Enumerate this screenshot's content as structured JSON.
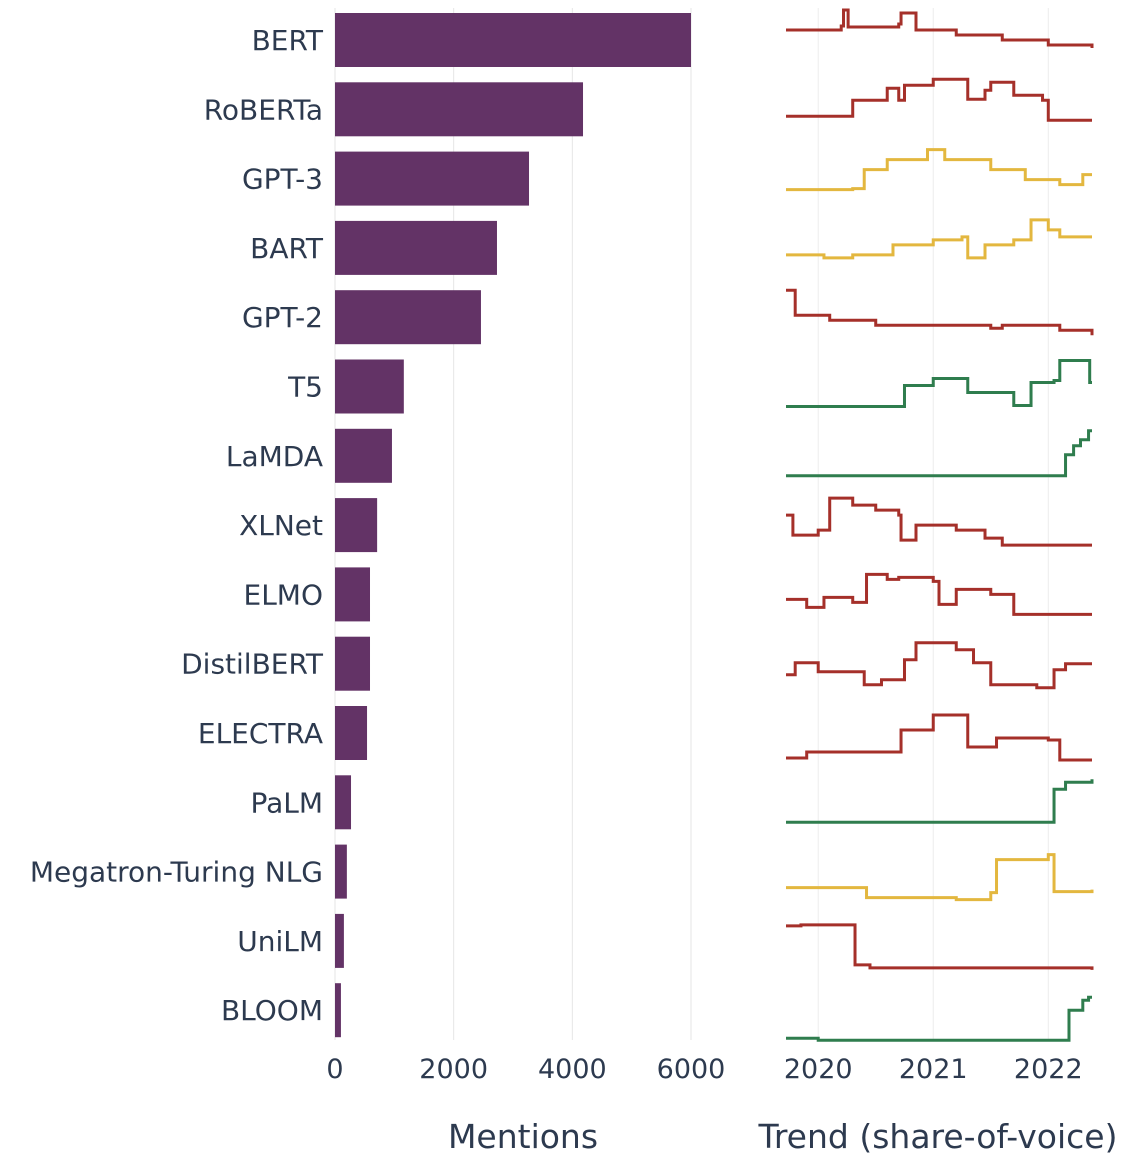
{
  "chart_data": [
    {
      "type": "bar",
      "orientation": "horizontal",
      "categories": [
        "BERT",
        "RoBERTa",
        "GPT-3",
        "BART",
        "GPT-2",
        "T5",
        "LaMDA",
        "XLNet",
        "ELMO",
        "DistilBERT",
        "ELECTRA",
        "PaLM",
        "Megatron-Turing NLG",
        "UniLM",
        "BLOOM"
      ],
      "values": [
        6000,
        4180,
        3270,
        2730,
        2460,
        1160,
        960,
        710,
        590,
        590,
        540,
        270,
        200,
        150,
        100
      ],
      "xlabel": "Mentions",
      "xlim": [
        0,
        6000
      ],
      "xticks": [
        "0",
        "2000",
        "4000",
        "6000"
      ],
      "grid": true,
      "bar_color": "#633366"
    },
    {
      "type": "line",
      "style": "step",
      "xlabel": "Trend (share-of-voice)",
      "xlim": [
        2019.72,
        2022.38
      ],
      "xticks": [
        "2020",
        "2021",
        "2022"
      ],
      "colors": {
        "down": "#a5302a",
        "flat": "#e3b73f",
        "up": "#2f7d4e"
      },
      "series": [
        {
          "category": "BERT",
          "trend": "down",
          "points": [
            [
              2019.72,
              0.6
            ],
            [
              2020.2,
              0.68
            ],
            [
              2020.22,
              1.0
            ],
            [
              2020.26,
              0.66
            ],
            [
              2020.7,
              0.72
            ],
            [
              2020.72,
              0.94
            ],
            [
              2020.85,
              0.6
            ],
            [
              2021.2,
              0.5
            ],
            [
              2021.6,
              0.4
            ],
            [
              2022.0,
              0.3
            ],
            [
              2022.38,
              0.24
            ]
          ]
        },
        {
          "category": "RoBERTa",
          "trend": "down",
          "points": [
            [
              2019.72,
              0.26
            ],
            [
              2020.3,
              0.58
            ],
            [
              2020.6,
              0.82
            ],
            [
              2020.7,
              0.58
            ],
            [
              2020.75,
              0.88
            ],
            [
              2021.0,
              1.0
            ],
            [
              2021.3,
              0.6
            ],
            [
              2021.45,
              0.78
            ],
            [
              2021.5,
              0.94
            ],
            [
              2021.7,
              0.68
            ],
            [
              2021.95,
              0.58
            ],
            [
              2022.0,
              0.18
            ],
            [
              2022.38,
              0.18
            ]
          ]
        },
        {
          "category": "GPT-3",
          "trend": "flat",
          "points": [
            [
              2019.72,
              0.18
            ],
            [
              2020.3,
              0.2
            ],
            [
              2020.4,
              0.58
            ],
            [
              2020.6,
              0.78
            ],
            [
              2020.95,
              0.98
            ],
            [
              2021.1,
              0.78
            ],
            [
              2021.5,
              0.58
            ],
            [
              2021.8,
              0.38
            ],
            [
              2022.1,
              0.28
            ],
            [
              2022.3,
              0.48
            ],
            [
              2022.38,
              0.48
            ]
          ]
        },
        {
          "category": "BART",
          "trend": "flat",
          "points": [
            [
              2019.72,
              0.26
            ],
            [
              2020.05,
              0.2
            ],
            [
              2020.3,
              0.26
            ],
            [
              2020.65,
              0.46
            ],
            [
              2021.0,
              0.56
            ],
            [
              2021.25,
              0.62
            ],
            [
              2021.3,
              0.2
            ],
            [
              2021.45,
              0.46
            ],
            [
              2021.7,
              0.56
            ],
            [
              2021.85,
              0.96
            ],
            [
              2022.0,
              0.76
            ],
            [
              2022.1,
              0.62
            ],
            [
              2022.38,
              0.62
            ]
          ]
        },
        {
          "category": "GPT-2",
          "trend": "down",
          "points": [
            [
              2019.72,
              0.94
            ],
            [
              2019.8,
              0.44
            ],
            [
              2020.1,
              0.34
            ],
            [
              2020.5,
              0.24
            ],
            [
              2021.5,
              0.18
            ],
            [
              2021.6,
              0.24
            ],
            [
              2022.1,
              0.14
            ],
            [
              2022.38,
              0.04
            ]
          ]
        },
        {
          "category": "T5",
          "trend": "up",
          "points": [
            [
              2019.72,
              0.0
            ],
            [
              2020.75,
              0.42
            ],
            [
              2021.0,
              0.56
            ],
            [
              2021.3,
              0.28
            ],
            [
              2021.7,
              0.02
            ],
            [
              2021.85,
              0.48
            ],
            [
              2022.05,
              0.52
            ],
            [
              2022.1,
              0.92
            ],
            [
              2022.36,
              0.48
            ],
            [
              2022.38,
              0.48
            ]
          ]
        },
        {
          "category": "LaMDA",
          "trend": "up",
          "points": [
            [
              2019.72,
              0.0
            ],
            [
              2022.15,
              0.42
            ],
            [
              2022.22,
              0.6
            ],
            [
              2022.28,
              0.72
            ],
            [
              2022.35,
              0.9
            ],
            [
              2022.38,
              0.9
            ]
          ]
        },
        {
          "category": "XLNet",
          "trend": "down",
          "points": [
            [
              2019.72,
              0.6
            ],
            [
              2019.78,
              0.2
            ],
            [
              2020.0,
              0.3
            ],
            [
              2020.1,
              0.94
            ],
            [
              2020.3,
              0.8
            ],
            [
              2020.5,
              0.7
            ],
            [
              2020.7,
              0.6
            ],
            [
              2020.72,
              0.1
            ],
            [
              2020.85,
              0.4
            ],
            [
              2021.2,
              0.3
            ],
            [
              2021.45,
              0.14
            ],
            [
              2021.6,
              0.0
            ],
            [
              2022.38,
              0.0
            ]
          ]
        },
        {
          "category": "ELMO",
          "trend": "down",
          "points": [
            [
              2019.72,
              0.3
            ],
            [
              2019.9,
              0.14
            ],
            [
              2020.05,
              0.34
            ],
            [
              2020.3,
              0.24
            ],
            [
              2020.42,
              0.8
            ],
            [
              2020.6,
              0.7
            ],
            [
              2020.7,
              0.74
            ],
            [
              2021.0,
              0.66
            ],
            [
              2021.05,
              0.2
            ],
            [
              2021.2,
              0.5
            ],
            [
              2021.5,
              0.4
            ],
            [
              2021.7,
              0.0
            ],
            [
              2022.38,
              0.0
            ]
          ]
        },
        {
          "category": "DistilBERT",
          "trend": "down",
          "points": [
            [
              2019.72,
              0.18
            ],
            [
              2019.8,
              0.42
            ],
            [
              2020.0,
              0.24
            ],
            [
              2020.4,
              -0.02
            ],
            [
              2020.55,
              0.08
            ],
            [
              2020.75,
              0.48
            ],
            [
              2020.85,
              0.82
            ],
            [
              2021.2,
              0.68
            ],
            [
              2021.35,
              0.42
            ],
            [
              2021.5,
              -0.02
            ],
            [
              2021.9,
              -0.08
            ],
            [
              2022.05,
              0.28
            ],
            [
              2022.15,
              0.4
            ],
            [
              2022.38,
              0.4
            ]
          ]
        },
        {
          "category": "ELECTRA",
          "trend": "down",
          "points": [
            [
              2019.72,
              -0.1
            ],
            [
              2019.9,
              0.02
            ],
            [
              2020.5,
              0.02
            ],
            [
              2020.72,
              0.46
            ],
            [
              2021.0,
              0.76
            ],
            [
              2021.3,
              0.12
            ],
            [
              2021.55,
              0.3
            ],
            [
              2022.0,
              0.26
            ],
            [
              2022.1,
              -0.14
            ],
            [
              2022.38,
              -0.14
            ]
          ]
        },
        {
          "category": "PaLM",
          "trend": "up",
          "points": [
            [
              2019.72,
              0.0
            ],
            [
              2022.0,
              0.0
            ],
            [
              2022.05,
              0.66
            ],
            [
              2022.15,
              0.8
            ],
            [
              2022.38,
              0.86
            ]
          ]
        },
        {
          "category": "Megatron-Turing NLG",
          "trend": "flat",
          "points": [
            [
              2019.72,
              0.08
            ],
            [
              2020.42,
              -0.12
            ],
            [
              2021.2,
              -0.16
            ],
            [
              2021.5,
              -0.02
            ],
            [
              2021.55,
              0.64
            ],
            [
              2022.0,
              0.74
            ],
            [
              2022.05,
              0.0
            ],
            [
              2022.38,
              0.04
            ]
          ]
        },
        {
          "category": "UniLM",
          "trend": "down",
          "points": [
            [
              2019.72,
              0.7
            ],
            [
              2019.85,
              0.72
            ],
            [
              2020.32,
              -0.08
            ],
            [
              2020.45,
              -0.14
            ],
            [
              2022.38,
              -0.18
            ]
          ]
        },
        {
          "category": "BLOOM",
          "trend": "up",
          "points": [
            [
              2019.72,
              -0.16
            ],
            [
              2020.0,
              -0.2
            ],
            [
              2022.15,
              -0.2
            ],
            [
              2022.18,
              0.4
            ],
            [
              2022.3,
              0.6
            ],
            [
              2022.35,
              0.66
            ],
            [
              2022.38,
              0.66
            ]
          ]
        }
      ]
    }
  ]
}
